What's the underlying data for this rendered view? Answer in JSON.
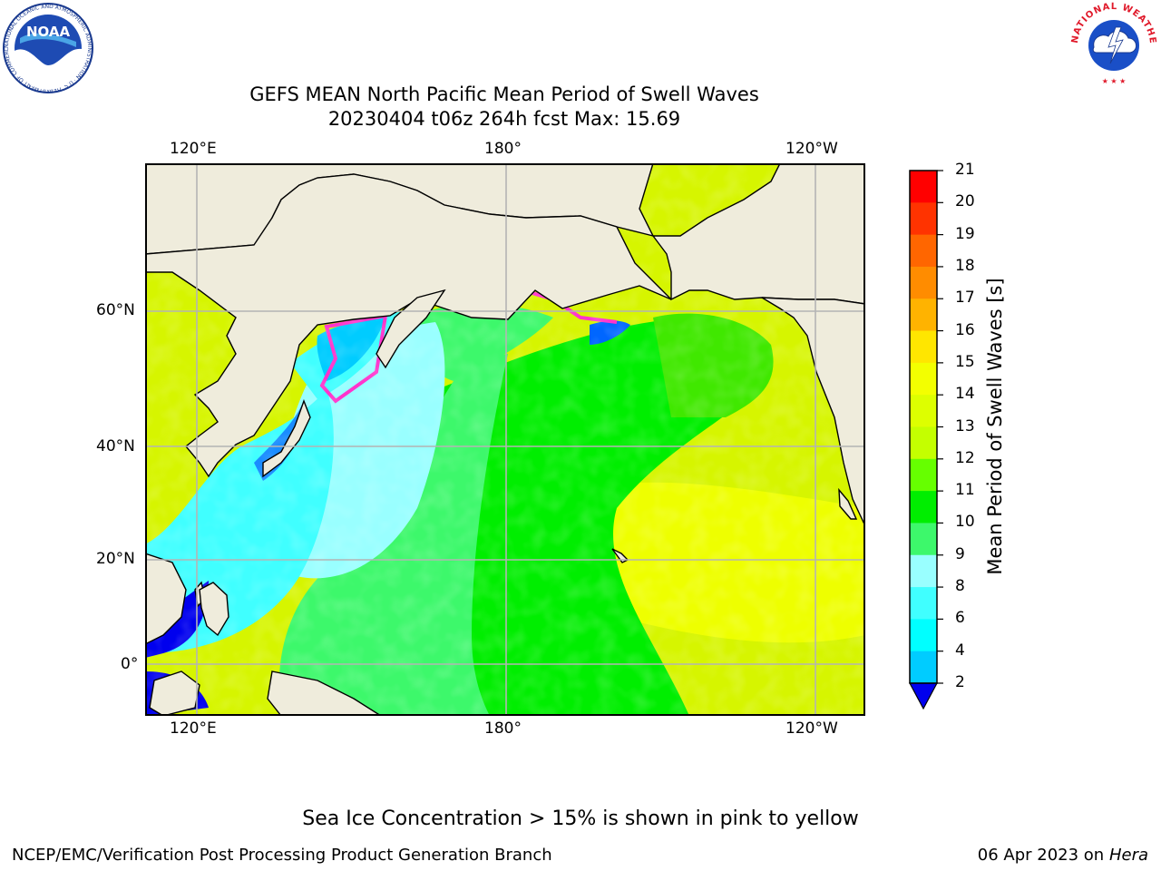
{
  "title": {
    "line1": "GEFS MEAN North Pacific Mean Period of Swell Waves",
    "line2": "20230404 t06z 264h fcst   Max: 15.69"
  },
  "map": {
    "top_lon_labels": [
      "120°E",
      "180°",
      "120°W"
    ],
    "bottom_lon_labels": [
      "120°E",
      "180°",
      "120°W"
    ],
    "lat_labels": [
      "60°N",
      "40°N",
      "20°N",
      "0°"
    ],
    "grid": true,
    "land_color": "#efecdc"
  },
  "colorbar": {
    "label": "Mean Period of Swell Waves [s]",
    "ticks": [
      "21",
      "20",
      "19",
      "18",
      "17",
      "16",
      "15",
      "14",
      "13",
      "12",
      "11",
      "10",
      "9",
      "8",
      "6",
      "4",
      "2"
    ],
    "colors": [
      "#ff0000",
      "#ff3300",
      "#ff6600",
      "#ff8c00",
      "#ffb300",
      "#ffe600",
      "#f3ff00",
      "#ddff00",
      "#c4ff00",
      "#66ff00",
      "#00ee00",
      "#3df86b",
      "#99ffff",
      "#40ffff",
      "#00ffff",
      "#00ccff",
      "#0066ff"
    ],
    "extend_color": "#0000ee"
  },
  "note": "Sea Ice Concentration > 15% is shown in pink to yellow",
  "footer": {
    "left": "NCEP/EMC/Verification Post Processing Product Generation Branch",
    "right_date": "06 Apr 2023 on ",
    "right_host": "Hera"
  },
  "logos": {
    "left": "NOAA",
    "left_ring": "NATIONAL OCEANIC AND ATMOSPHERIC ADMINISTRATION · U.S. DEPARTMENT OF COMMERCE",
    "right_ring": "NATIONAL WEATHER SERVICE"
  }
}
